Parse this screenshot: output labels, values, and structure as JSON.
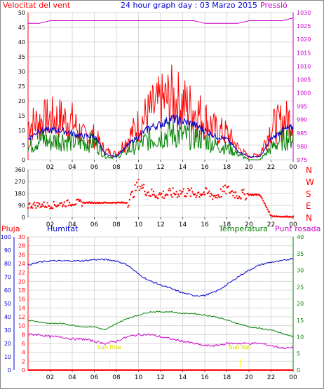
{
  "header": {
    "wind_label": "Velocitat del vent",
    "title": "24 hour graph day : 03 Marzo 2015",
    "pressure_label": "Pressió"
  },
  "humidity_label": "Humitat",
  "temperature_label": "Temperatura",
  "dew_label": "Punt rosada",
  "rain_label": "Pluja",
  "sunrise_label": "Sun Rise",
  "sunset_label": "Sun Set",
  "colors": {
    "wind": "#ff0000",
    "wind_avg": "#0000cc",
    "wind_low": "#008000",
    "pressure": "#cc00cc",
    "direction": "#ff0000",
    "humidity": "#0000cc",
    "temperature": "#008000",
    "dew": "#cc00cc",
    "rain": "#ff0000",
    "sun": "#ffff00"
  },
  "chart_data": [
    {
      "type": "line",
      "title": "24 hour graph day : 03 Marzo 2015",
      "x_tick_labels": [
        "02",
        "04",
        "06",
        "08",
        "10",
        "12",
        "14",
        "16",
        "18",
        "20",
        "22",
        "00"
      ],
      "y_left": {
        "label": "Velocitat del vent",
        "ylim": [
          0,
          50
        ],
        "ticks": [
          0,
          5,
          10,
          15,
          20,
          25,
          30,
          35,
          40,
          45,
          50
        ]
      },
      "y_right": {
        "label": "Pressió",
        "ylim": [
          975,
          1030
        ],
        "ticks": [
          975,
          980,
          985,
          990,
          995,
          1000,
          1005,
          1010,
          1015,
          1020,
          1025,
          1030
        ]
      },
      "x": [
        0,
        1,
        2,
        3,
        4,
        5,
        6,
        7,
        8,
        9,
        10,
        11,
        12,
        13,
        14,
        15,
        16,
        17,
        18,
        19,
        20,
        21,
        22,
        23,
        24
      ],
      "series": [
        {
          "name": "gust",
          "axis": "left",
          "values": [
            12,
            13,
            14,
            14,
            13,
            8,
            8,
            3,
            2,
            7,
            12,
            16,
            19,
            21,
            19,
            17,
            14,
            10,
            9,
            4,
            1,
            2,
            11,
            13,
            14
          ]
        },
        {
          "name": "average",
          "axis": "left",
          "values": [
            7,
            10,
            10,
            10,
            9,
            8,
            8,
            2,
            1,
            5,
            8,
            11,
            12,
            14,
            13,
            12,
            10,
            8,
            7,
            3,
            1,
            1,
            7,
            10,
            11
          ]
        },
        {
          "name": "low",
          "axis": "left",
          "values": [
            4,
            7,
            6,
            7,
            6,
            6,
            6,
            1,
            1,
            3,
            5,
            7,
            8,
            9,
            8,
            8,
            7,
            5,
            4,
            2,
            0,
            0,
            4,
            7,
            8
          ]
        },
        {
          "name": "pressure",
          "axis": "right",
          "values": [
            1026,
            1026,
            1027,
            1027,
            1027,
            1027,
            1027,
            1027,
            1027,
            1027,
            1027,
            1027,
            1027,
            1027,
            1027,
            1027,
            1026,
            1026,
            1026,
            1026,
            1027,
            1027,
            1027,
            1027,
            1028
          ]
        }
      ]
    },
    {
      "type": "scatter",
      "x_tick_labels": [
        "02",
        "04",
        "06",
        "08",
        "10",
        "12",
        "14",
        "16",
        "18",
        "20",
        "22",
        "00"
      ],
      "y_left": {
        "ylim": [
          0,
          360
        ],
        "ticks": [
          0,
          90,
          180,
          270,
          360
        ]
      },
      "y_right_labels": [
        "N",
        "W",
        "S",
        "E",
        "N"
      ],
      "x": [
        0,
        1,
        2,
        3,
        4,
        5,
        6,
        7,
        8,
        9,
        10,
        11,
        12,
        13,
        14,
        15,
        16,
        17,
        18,
        19,
        20,
        21,
        22,
        23,
        24
      ],
      "series": [
        {
          "name": "direction",
          "values": [
            90,
            95,
            90,
            100,
            110,
            110,
            110,
            110,
            110,
            110,
            250,
            180,
            170,
            180,
            190,
            180,
            185,
            160,
            210,
            170,
            170,
            170,
            10,
            5,
            5
          ]
        }
      ]
    },
    {
      "type": "line",
      "x_tick_labels": [
        "02",
        "04",
        "06",
        "08",
        "10",
        "12",
        "14",
        "16",
        "18",
        "20",
        "22",
        "00"
      ],
      "y_left1": {
        "label": "Pluja",
        "ylim": [
          0,
          100
        ],
        "ticks": [
          0,
          10,
          20,
          30,
          40,
          50,
          60,
          70,
          80,
          90,
          100
        ]
      },
      "y_left2": {
        "ylim": [
          0,
          30
        ],
        "ticks": [
          0,
          2,
          4,
          6,
          8,
          10,
          12,
          14,
          16,
          18,
          20,
          22,
          24,
          26,
          28,
          30
        ]
      },
      "y_right": {
        "ylim": [
          0,
          40
        ],
        "ticks": [
          0,
          5,
          10,
          15,
          20,
          25,
          30,
          35,
          40
        ]
      },
      "x": [
        0,
        1,
        2,
        3,
        4,
        5,
        6,
        7,
        8,
        9,
        10,
        11,
        12,
        13,
        14,
        15,
        16,
        17,
        18,
        19,
        20,
        21,
        22,
        23,
        24
      ],
      "series": [
        {
          "name": "Humitat",
          "axis": "left1",
          "values": [
            79,
            81,
            82,
            82,
            82,
            82,
            83,
            83,
            82,
            79,
            72,
            67,
            64,
            61,
            58,
            56,
            56,
            59,
            64,
            70,
            75,
            79,
            81,
            82,
            84
          ]
        },
        {
          "name": "Temperatura",
          "axis": "right",
          "values": [
            15,
            14.5,
            14,
            14,
            13.5,
            13,
            13,
            12,
            14,
            15.5,
            16.5,
            17.5,
            17.5,
            17.5,
            17,
            17,
            16.5,
            16,
            15,
            14,
            13,
            12.5,
            12,
            11,
            10
          ]
        },
        {
          "name": "Punt rosada",
          "axis": "left2",
          "values": [
            8,
            8,
            7.5,
            7.5,
            7,
            7,
            6.5,
            6,
            6.5,
            7.5,
            8,
            8,
            7.5,
            7,
            6.5,
            6,
            5.5,
            5.5,
            6,
            6,
            6,
            6,
            5.5,
            5,
            5
          ]
        },
        {
          "name": "Pluja",
          "axis": "left1",
          "values": [
            0,
            0,
            0,
            0,
            0,
            0,
            0,
            0,
            0,
            0,
            0,
            0,
            0,
            0,
            0,
            0,
            0,
            0,
            0,
            0,
            0,
            0,
            0,
            0,
            0
          ]
        }
      ],
      "sunrise_hour": 7.4,
      "sunset_hour": 19.2
    }
  ]
}
